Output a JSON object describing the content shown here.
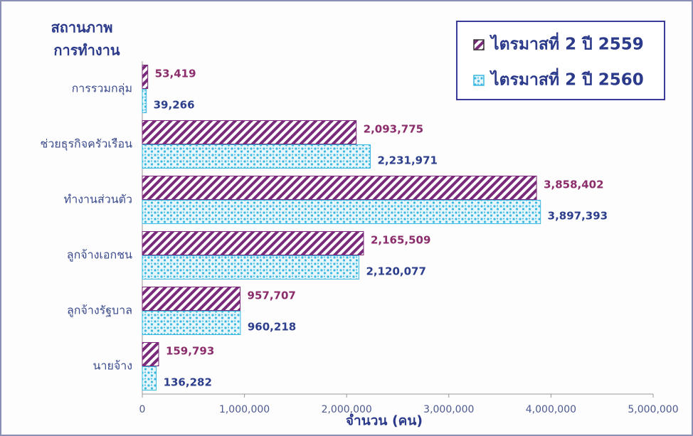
{
  "chart_data": {
    "type": "barh",
    "y_label": [
      "สถานภาพ",
      "การทำงาน"
    ],
    "x_label": "จำนวน (คน)",
    "categories": [
      "การรวมกลุ่ม",
      "ช่วยธุรกิจครัวเรือน",
      "ทำงานส่วนตัว",
      "ลูกจ้างเอกชน",
      "ลูกจ้างรัฐบาล",
      "นายจ้าง"
    ],
    "series": [
      {
        "name": "ไตรมาสที่ 2 ปี 2559",
        "color": "#7a2a7a",
        "pattern": "hatch",
        "values": [
          53419,
          2093775,
          3858402,
          2165509,
          957707,
          159793
        ],
        "value_labels": [
          "53,419",
          "2,093,775",
          "3,858,402",
          "2,165,509",
          "957,707",
          "159,793"
        ]
      },
      {
        "name": "ไตรมาสที่ 2 ปี 2560",
        "color": "#3bb8e0",
        "pattern": "dots",
        "values": [
          39266,
          2231971,
          3897393,
          2120077,
          960218,
          136282
        ],
        "value_labels": [
          "39,266",
          "2,231,971",
          "3,897,393",
          "2,120,077",
          "960,218",
          "136,282"
        ]
      }
    ],
    "xlim": [
      0,
      5000000
    ],
    "xticks": [
      0,
      {
        "value": 1000000,
        "label": "1,000,000"
      },
      {
        "value": 2000000,
        "label": "2,000,000"
      },
      {
        "value": 3000000,
        "label": "3,000,000"
      },
      {
        "value": 4000000,
        "label": "4,000,000"
      },
      {
        "value": 5000000,
        "label": "5,000,000"
      }
    ],
    "legend": "top-right"
  }
}
